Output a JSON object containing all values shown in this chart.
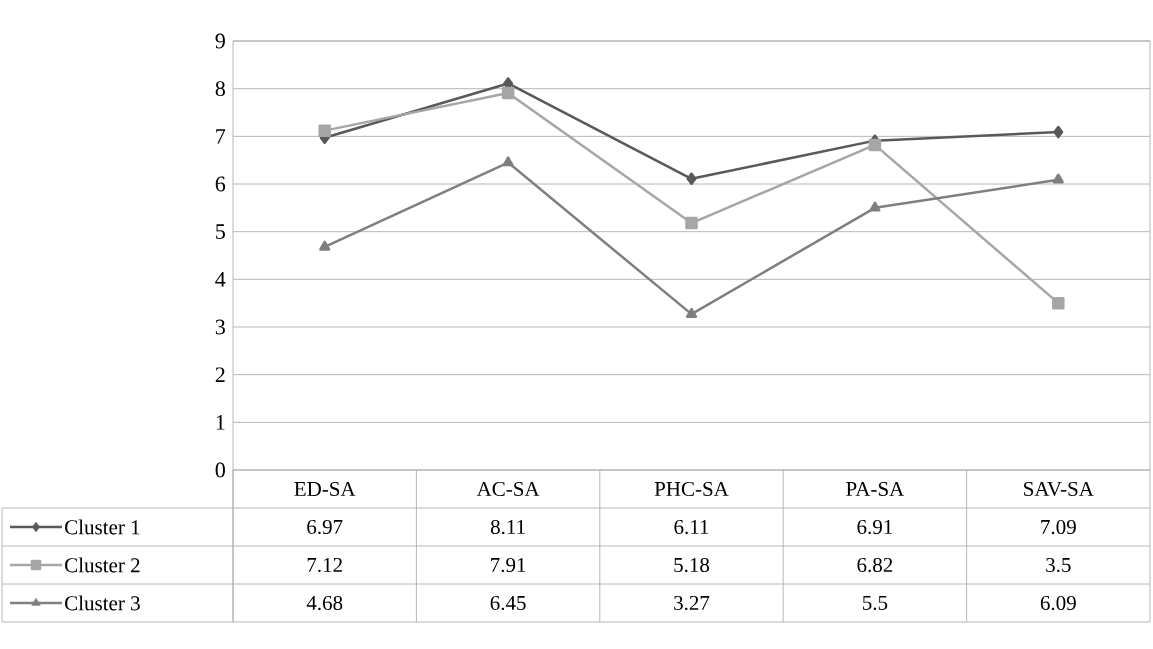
{
  "chart_data": {
    "type": "line",
    "categories": [
      "ED-SA",
      "AC-SA",
      "PHC-SA",
      "PA-SA",
      "SAV-SA"
    ],
    "series": [
      {
        "name": "Cluster 1",
        "color": "#595959",
        "marker": "diamond",
        "values": [
          6.97,
          8.11,
          6.11,
          6.91,
          7.09
        ]
      },
      {
        "name": "Cluster 2",
        "color": "#a6a6a6",
        "marker": "square",
        "values": [
          7.12,
          7.91,
          5.18,
          6.82,
          3.5
        ]
      },
      {
        "name": "Cluster 3",
        "color": "#7f7f7f",
        "marker": "triangle",
        "values": [
          4.68,
          6.45,
          3.27,
          5.5,
          6.09
        ]
      }
    ],
    "ylim": [
      0,
      9
    ],
    "yticks": [
      0,
      1,
      2,
      3,
      4,
      5,
      6,
      7,
      8,
      9
    ],
    "grid": "y",
    "legend": "bottom",
    "data_labels": true,
    "line_style": "solid"
  }
}
